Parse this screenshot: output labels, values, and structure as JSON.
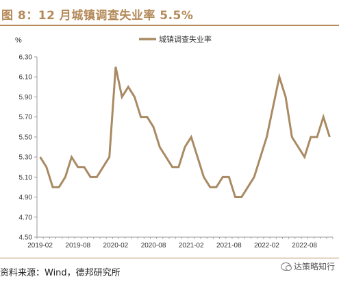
{
  "figure": {
    "title": "图 8：12 月城镇调查失业率 5.5%",
    "source": "资料来源：Wind，德邦研究所",
    "watermark": "达策略知行"
  },
  "chart_data": {
    "type": "line",
    "ylabel": "%",
    "ylim": [
      4.5,
      6.3
    ],
    "yticks": [
      4.5,
      4.7,
      4.9,
      5.1,
      5.3,
      5.5,
      5.7,
      5.9,
      6.1,
      6.3
    ],
    "ytick_labels": [
      "4.50",
      "4.70",
      "4.90",
      "5.10",
      "5.30",
      "5.50",
      "5.70",
      "5.90",
      "6.10",
      "6.30"
    ],
    "xtick_labels": [
      "2019-02",
      "2019-08",
      "2020-02",
      "2020-08",
      "2021-02",
      "2021-08",
      "2022-02",
      "2022-08"
    ],
    "legend_position": "top-center",
    "grid": false,
    "color": "#a98a63",
    "series": [
      {
        "name": "城镇调查失业率",
        "x": [
          "2019-02",
          "2019-03",
          "2019-04",
          "2019-05",
          "2019-06",
          "2019-07",
          "2019-08",
          "2019-09",
          "2019-10",
          "2019-11",
          "2019-12",
          "2020-01",
          "2020-02",
          "2020-03",
          "2020-04",
          "2020-05",
          "2020-06",
          "2020-07",
          "2020-08",
          "2020-09",
          "2020-10",
          "2020-11",
          "2020-12",
          "2021-01",
          "2021-02",
          "2021-03",
          "2021-04",
          "2021-05",
          "2021-06",
          "2021-07",
          "2021-08",
          "2021-09",
          "2021-10",
          "2021-11",
          "2021-12",
          "2022-01",
          "2022-02",
          "2022-03",
          "2022-04",
          "2022-05",
          "2022-06",
          "2022-07",
          "2022-08",
          "2022-09",
          "2022-10",
          "2022-11",
          "2022-12"
        ],
        "values": [
          5.3,
          5.2,
          5.0,
          5.0,
          5.1,
          5.3,
          5.2,
          5.2,
          5.1,
          5.1,
          5.2,
          5.3,
          6.2,
          5.9,
          6.0,
          5.9,
          5.7,
          5.7,
          5.6,
          5.4,
          5.3,
          5.2,
          5.2,
          5.4,
          5.5,
          5.3,
          5.1,
          5.0,
          5.0,
          5.1,
          5.1,
          4.9,
          4.9,
          5.0,
          5.1,
          5.3,
          5.5,
          5.8,
          6.1,
          5.9,
          5.5,
          5.4,
          5.3,
          5.5,
          5.5,
          5.7,
          5.5
        ]
      }
    ]
  }
}
